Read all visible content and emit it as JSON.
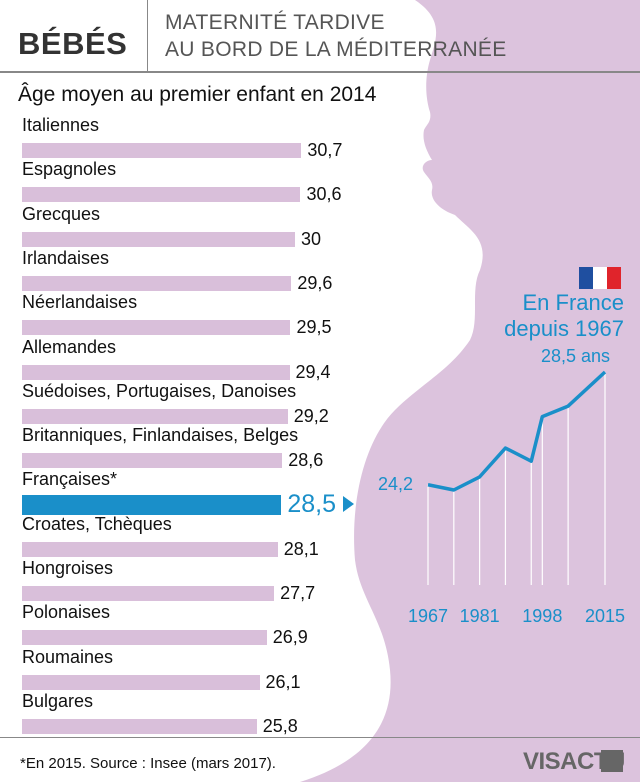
{
  "header": {
    "title": "BÉBÉS",
    "subtitle_lines": [
      "MATERNITÉ TARDIVE",
      "AU BORD DE LA MÉDITERRANÉE"
    ]
  },
  "chart_title": "Âge moyen au premier enfant en 2014",
  "colors": {
    "bar": "#d9bfda",
    "highlight": "#1a8fc9",
    "silhouette": "#dcc3dd"
  },
  "chart_data": [
    {
      "type": "bar",
      "title": "Âge moyen au premier enfant en 2014",
      "orientation": "horizontal",
      "categories": [
        "Italiennes",
        "Espagnoles",
        "Grecques",
        "Irlandaises",
        "Néerlandaises",
        "Allemandes",
        "Suédoises, Portugaises, Danoises",
        "Britanniques, Finlandaises, Belges",
        "Françaises*",
        "Croates, Tchèques",
        "Hongroises",
        "Polonaises",
        "Roumaines",
        "Bulgares"
      ],
      "values": [
        30.7,
        30.6,
        30,
        29.6,
        29.5,
        29.4,
        29.2,
        28.6,
        28.5,
        28.1,
        27.7,
        26.9,
        26.1,
        25.8
      ],
      "value_labels": [
        "30,7",
        "30,6",
        "30",
        "29,6",
        "29,5",
        "29,4",
        "29,2",
        "28,6",
        "28,5",
        "28,1",
        "27,7",
        "26,9",
        "26,1",
        "25,8"
      ],
      "highlight": "Françaises*"
    },
    {
      "type": "line",
      "title_lines": [
        "En France",
        "depuis 1967"
      ],
      "x": [
        1967,
        1974,
        1981,
        1988,
        1995,
        1998,
        2005,
        2015
      ],
      "y": [
        24.2,
        24.0,
        24.5,
        25.6,
        25.1,
        26.8,
        27.2,
        28.5
      ],
      "x_tick_labels": [
        "1967",
        "1981",
        "1998",
        "2015"
      ],
      "start_label": "24,2",
      "end_label": "28,5 ans"
    }
  ],
  "footnote": "*En 2015. Source : Insee (mars 2017).",
  "logo": "VISACTU"
}
